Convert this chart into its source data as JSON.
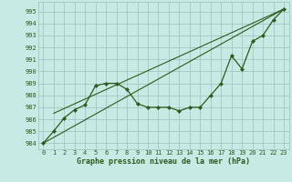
{
  "title": "Graphe pression niveau de la mer (hPa)",
  "bg_color": "#c8eae4",
  "plot_bg_color": "#c8eae4",
  "grid_color": "#9bbfba",
  "line_color": "#2d5a1b",
  "xlim": [
    -0.5,
    23.5
  ],
  "ylim": [
    983.5,
    995.8
  ],
  "yticks": [
    984,
    985,
    986,
    987,
    988,
    989,
    990,
    991,
    992,
    993,
    994,
    995
  ],
  "xticks": [
    0,
    1,
    2,
    3,
    4,
    5,
    6,
    7,
    8,
    9,
    10,
    11,
    12,
    13,
    14,
    15,
    16,
    17,
    18,
    19,
    20,
    21,
    22,
    23
  ],
  "xtick_labels": [
    "0",
    "1",
    "2",
    "3",
    "4",
    "5",
    "6",
    "7",
    "8",
    "9",
    "10",
    "11",
    "12",
    "13",
    "14",
    "15",
    "16",
    "17",
    "18",
    "19",
    "20",
    "21",
    "22",
    "23"
  ],
  "y_main": [
    984.0,
    985.0,
    986.1,
    986.8,
    987.2,
    988.8,
    989.0,
    989.0,
    988.5,
    987.3,
    987.0,
    987.0,
    987.0,
    986.7,
    987.0,
    987.0,
    988.0,
    989.0,
    991.3,
    990.2,
    992.5,
    993.0,
    994.3,
    995.2
  ],
  "trend1_x": [
    0,
    23
  ],
  "trend1_y": [
    984.0,
    995.2
  ],
  "trend2_x": [
    1,
    23
  ],
  "trend2_y": [
    986.5,
    995.2
  ],
  "xlabel_fontsize": 6,
  "tick_fontsize": 5
}
